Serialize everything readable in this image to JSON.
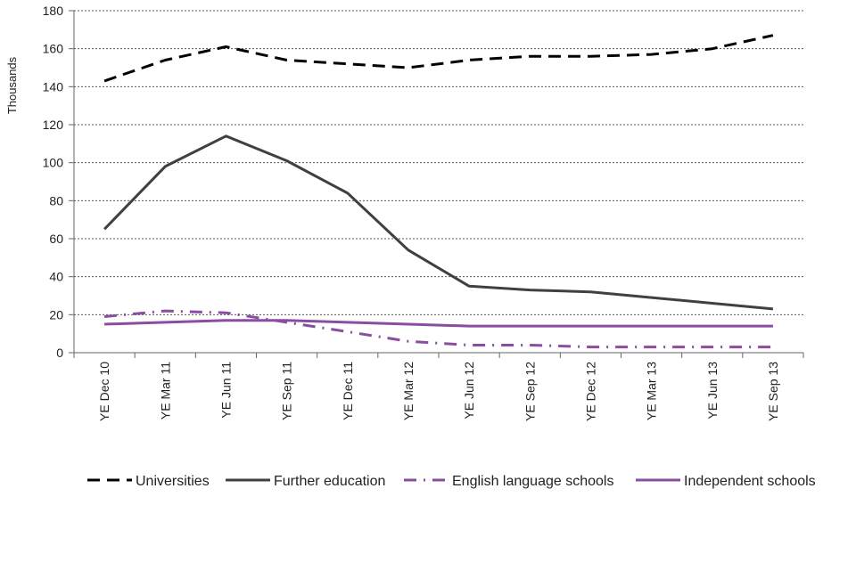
{
  "chart_data": {
    "type": "line",
    "title": "",
    "xlabel": "",
    "ylabel": "Thousands",
    "ylim": [
      0,
      180
    ],
    "yticks": [
      0,
      20,
      40,
      60,
      80,
      100,
      120,
      140,
      160,
      180
    ],
    "grid": "horizontal dotted",
    "legend_position": "bottom",
    "categories": [
      "YE Dec 10",
      "YE Mar 11",
      "YE Jun 11",
      "YE Sep 11",
      "YE Dec 11",
      "YE Mar 12",
      "YE Jun 12",
      "YE Sep 12",
      "YE Dec 12",
      "YE Mar 13",
      "YE Jun 13",
      "YE Sep 13"
    ],
    "series": [
      {
        "name": "Universities",
        "color": "#000000",
        "style": "dashed",
        "values": [
          143,
          154,
          161,
          154,
          152,
          150,
          154,
          156,
          156,
          157,
          160,
          167
        ]
      },
      {
        "name": "Further education",
        "color": "#404040",
        "style": "solid",
        "values": [
          65,
          98,
          114,
          101,
          84,
          54,
          35,
          33,
          32,
          29,
          26,
          23
        ]
      },
      {
        "name": "English language schools",
        "color": "#8B4DA0",
        "style": "dashdot",
        "values": [
          19,
          22,
          21,
          16,
          11,
          6,
          4,
          4,
          3,
          3,
          3,
          3
        ]
      },
      {
        "name": "Independent schools",
        "color": "#8B4DA0",
        "style": "solid",
        "values": [
          15,
          16,
          17,
          17,
          16,
          15,
          14,
          14,
          14,
          14,
          14,
          14
        ]
      }
    ]
  }
}
